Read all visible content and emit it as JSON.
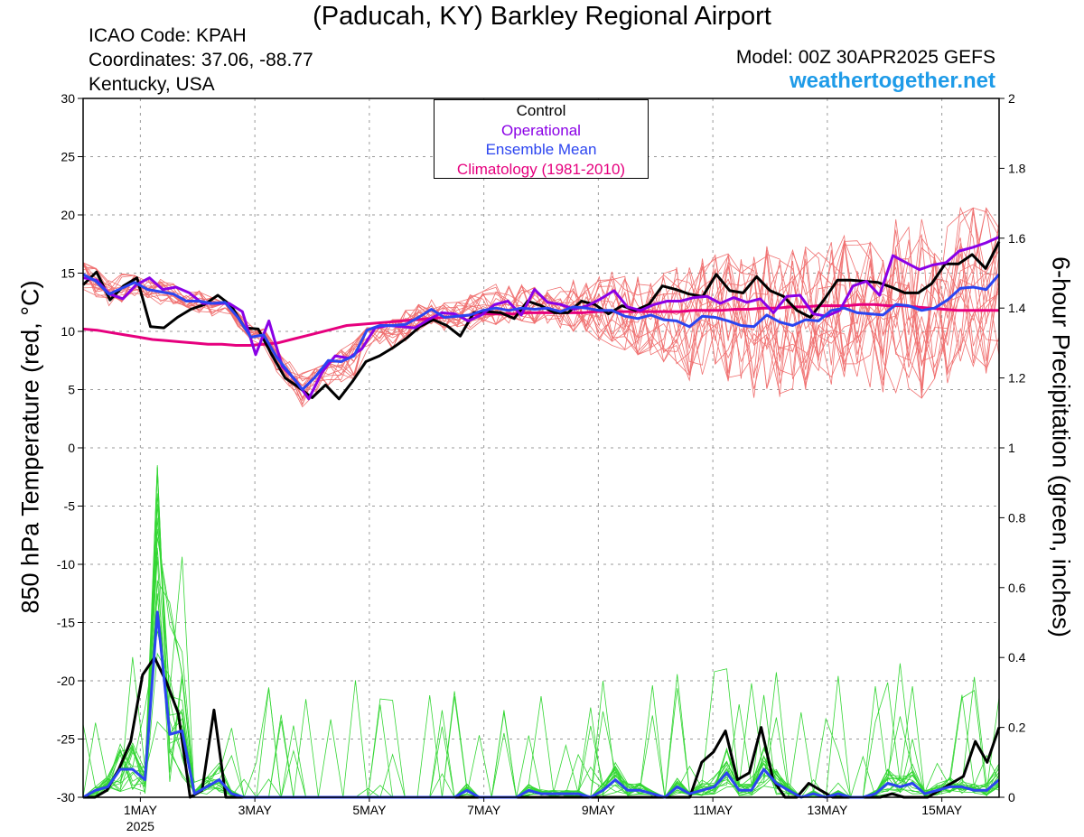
{
  "header": {
    "title": "(Paducah, KY) Barkley Regional Airport",
    "icao": "ICAO Code: KPAH",
    "coordinates": "Coordinates: 37.06, -88.77",
    "region": "Kentucky, USA",
    "model": "Model: 00Z 30APR2025 GEFS",
    "site": "weathertogether.net"
  },
  "chart_data": {
    "type": "line",
    "title": "(Paducah, KY) Barkley Regional Airport",
    "ylabel_left": "850 hPa Temperature (red, °C)",
    "ylabel_right": "6-hour Precipitation (green, inches)",
    "ylim_left": [
      -30,
      30
    ],
    "ylim_right": [
      0,
      2
    ],
    "yticks_left": [
      "30",
      "25",
      "20",
      "15",
      "10",
      "5",
      "0",
      "-5",
      "-10",
      "-15",
      "-20",
      "-25",
      "-30"
    ],
    "yticks_right": [
      "2",
      "1.8",
      "1.6",
      "1.4",
      "1.2",
      "1",
      "0.8",
      "0.6",
      "0.4",
      "0.2",
      "0"
    ],
    "x_unit": "days since 00Z 30APR2025 (6-hour steps)",
    "xlim": [
      0,
      16
    ],
    "xticks": [
      {
        "x": 1,
        "label": "1MAY",
        "sub": "2025"
      },
      {
        "x": 3,
        "label": "3MAY",
        "sub": ""
      },
      {
        "x": 5,
        "label": "5MAY",
        "sub": ""
      },
      {
        "x": 7,
        "label": "7MAY",
        "sub": ""
      },
      {
        "x": 9,
        "label": "9MAY",
        "sub": ""
      },
      {
        "x": 11,
        "label": "11MAY",
        "sub": ""
      },
      {
        "x": 13,
        "label": "13MAY",
        "sub": ""
      },
      {
        "x": 15,
        "label": "15MAY",
        "sub": ""
      }
    ],
    "grid": true,
    "legend": {
      "placement": "top-center",
      "entries": [
        {
          "label": "Control",
          "color": "#000000"
        },
        {
          "label": "Operational",
          "color": "#8a00e6"
        },
        {
          "label": "Ensemble Mean",
          "color": "#2b44f0"
        },
        {
          "label": "Climatology (1981-2010)",
          "color": "#e6007e"
        }
      ]
    },
    "series": [
      {
        "name": "Control",
        "axis": "temp",
        "color": "#000000",
        "values": [
          14,
          15.1,
          12.7,
          13.9,
          14.6,
          10.4,
          10.3,
          11.2,
          11.9,
          12.3,
          13.1,
          12.2,
          10.3,
          10.2,
          8,
          6,
          5.2,
          4.3,
          5.4,
          4.2,
          5.7,
          7.4,
          7.9,
          8.6,
          9.4,
          10.4,
          11,
          10.5,
          9.6,
          11.6,
          11.7,
          11.6,
          11.1,
          12.6,
          12.2,
          11.6,
          11.6,
          12.6,
          12.3,
          11.5,
          12.2,
          11.8,
          12.3,
          13.9,
          13.6,
          13.2,
          13,
          14.9,
          13.5,
          13.3,
          14.7,
          13.5,
          13,
          11.8,
          11.2,
          12.7,
          14.4,
          14.4,
          14.3,
          14.2,
          13.8,
          13.3,
          13.3,
          14.1,
          15.8,
          15.8,
          16.6,
          15.4,
          17.7
        ]
      },
      {
        "name": "Operational",
        "axis": "temp",
        "color": "#8a00e6",
        "values": [
          14.6,
          14.4,
          13.2,
          12.8,
          14,
          14.6,
          13.6,
          13.8,
          13.3,
          12.4,
          12.4,
          12.4,
          11.7,
          8,
          10.9,
          7,
          5.8,
          4.2,
          6.5,
          7.9,
          7.7,
          8.5,
          10.3,
          10.5,
          10.4,
          10.3,
          11,
          11.6,
          11.5,
          10.9,
          11.4,
          12.3,
          12.6,
          11.4,
          13.6,
          12.5,
          12.3,
          11.9,
          12.2,
          12.8,
          13.5,
          12.1,
          11.8,
          12.3,
          12.6,
          12.6,
          12.9,
          13,
          12.4,
          12.9,
          12.5,
          12.8,
          11.6,
          13,
          13.1,
          11.5,
          11.3,
          11.8,
          13.9,
          14.3,
          13.1,
          16.5,
          15.9,
          15.3,
          15.7,
          15.9,
          16.9,
          17.2,
          17.6,
          18.1
        ]
      },
      {
        "name": "Ensemble Mean",
        "axis": "temp",
        "color": "#2b44f0",
        "values": [
          14.9,
          14.3,
          13.2,
          13.7,
          14.2,
          13.6,
          13.4,
          13.2,
          12.6,
          12.6,
          12.4,
          12.5,
          11.2,
          9.5,
          9.7,
          7.8,
          6.4,
          5,
          6.1,
          7.5,
          7.4,
          7.9,
          10.1,
          10.5,
          10.5,
          10.6,
          11.2,
          11.9,
          11.2,
          11.3,
          11.4,
          11.8,
          12,
          11.8,
          12,
          11.9,
          12,
          11.7,
          12.1,
          12,
          11.8,
          11.8,
          11.3,
          11.1,
          11.4,
          11,
          10.9,
          10.4,
          11.3,
          11.2,
          10.9,
          10.5,
          10.4,
          11.4,
          10.8,
          10.5,
          11,
          10.9,
          11.8,
          12,
          11.6,
          11.5,
          11.4,
          12.3,
          12.2,
          11.8,
          12,
          12.7,
          13.7,
          13.8,
          13.6,
          14.9
        ]
      },
      {
        "name": "Climatology (1981-2010)",
        "axis": "temp",
        "color": "#e6007e",
        "values": [
          10.2,
          10.1,
          9.9,
          9.7,
          9.5,
          9.3,
          9.2,
          9.1,
          9,
          8.9,
          8.9,
          8.8,
          8.8,
          8.9,
          9,
          9.3,
          9.6,
          9.9,
          10.2,
          10.5,
          10.6,
          10.7,
          10.8,
          10.9,
          11,
          11.1,
          11.2,
          11.3,
          11.4,
          11.5,
          11.5,
          11.5,
          11.6,
          11.6,
          11.6,
          11.6,
          11.6,
          11.7,
          11.7,
          11.7,
          11.7,
          11.7,
          11.7,
          11.7,
          11.8,
          11.8,
          11.8,
          11.9,
          11.9,
          12,
          12,
          12.1,
          12.1,
          12.2,
          12.2,
          12.2,
          12.3,
          12.3,
          12.2,
          12.2,
          12.1,
          12,
          11.9,
          11.8,
          11.8,
          11.8,
          11.8
        ]
      },
      {
        "name": "Control",
        "axis": "precip",
        "color": "#000000",
        "values": [
          0,
          0,
          0.02,
          0.08,
          0.16,
          0.35,
          0.4,
          0.33,
          0.24,
          0,
          0.02,
          0.25,
          0,
          0,
          0,
          0,
          0,
          0,
          0,
          0,
          0,
          0,
          0,
          0,
          0,
          0,
          0,
          0,
          0,
          0,
          0,
          0,
          0,
          0,
          0,
          0,
          0,
          0,
          0,
          0,
          0,
          0,
          0,
          0,
          0,
          0,
          0,
          0,
          0,
          0,
          0,
          0,
          0.1,
          0.13,
          0.19,
          0.05,
          0.07,
          0.2,
          0.05,
          0,
          0,
          0.04,
          0.02,
          0,
          0,
          0,
          0,
          0,
          0.01,
          0,
          0,
          0,
          0.02,
          0.04,
          0.06,
          0.16,
          0.1,
          0.2
        ]
      },
      {
        "name": "Ensemble Mean",
        "axis": "precip",
        "color": "#2b44f0",
        "values": [
          0,
          0.02,
          0.03,
          0.08,
          0.08,
          0.05,
          0.53,
          0.18,
          0.19,
          0.01,
          0.03,
          0.05,
          0.01,
          0,
          0,
          0,
          0,
          0,
          0,
          0,
          0,
          0,
          0,
          0,
          0,
          0,
          0,
          0,
          0,
          0,
          0,
          0.02,
          0,
          0,
          0,
          0,
          0.02,
          0.01,
          0.01,
          0.01,
          0.01,
          0,
          0.02,
          0.05,
          0.02,
          0.02,
          0.01,
          0,
          0.03,
          0.01,
          0.02,
          0.03,
          0.07,
          0.02,
          0.02,
          0.08,
          0.04,
          0.02,
          0,
          0.01,
          0,
          0.01,
          0,
          0,
          0.01,
          0.04,
          0.03,
          0.04,
          0.01,
          0.02,
          0.03,
          0.03,
          0.02,
          0.02,
          0.05
        ]
      }
    ],
    "ensemble_members": {
      "temp_color": "#f07070",
      "precip_color": "#33d633",
      "temp_spread_min": [
        12.5,
        12.4,
        12.2,
        12.2,
        12.9,
        12.1,
        12.1,
        11.3,
        10.3,
        10.3,
        9.3,
        7.3,
        5.8,
        4.5,
        3.5,
        2.5,
        3.6,
        4.5,
        5.5,
        6.4,
        8.3,
        9.4,
        9.9,
        10.4,
        10.1,
        10.8,
        10.6,
        10.9,
        10.7,
        10.4,
        10.3,
        10,
        9.2,
        8.8,
        8.4,
        8,
        7.4,
        6.6,
        5.8,
        5,
        4.4,
        3.6,
        3.2,
        2.8,
        2.6,
        3.1,
        3.8,
        4.7,
        4.3,
        5.2,
        4.4,
        3.7,
        3.2,
        4.2,
        4.4,
        2.9,
        2.6,
        4.9
      ],
      "temp_spread_max": [
        15.9,
        15.4,
        15.1,
        14.8,
        15.1,
        14.6,
        14.2,
        13.6,
        12.9,
        12.4,
        11.6,
        10.2,
        8.6,
        7.4,
        6.8,
        7.3,
        8.4,
        9.1,
        10.3,
        11,
        11.8,
        12.3,
        12.8,
        13.2,
        14,
        14.8,
        15.4,
        15.8,
        14.9,
        14.6,
        15.1,
        15.3,
        15.9,
        16.2,
        16.2,
        16.6,
        16.7,
        17.2,
        17.5,
        17,
        17.2,
        16.8,
        16.8,
        17.3,
        17.6,
        18,
        18.5,
        19,
        19.3,
        19.8,
        20.6,
        20.6
      ]
    }
  }
}
